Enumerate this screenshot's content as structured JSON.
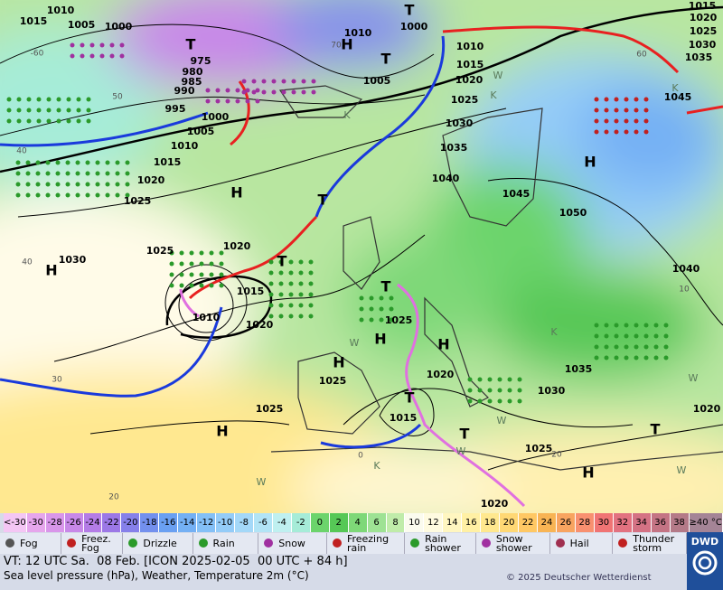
{
  "map": {
    "pressure_labels": [
      "1015",
      "1010",
      "1005",
      "1000",
      "975",
      "980",
      "985",
      "990",
      "995",
      "1000",
      "1005",
      "1010",
      "1015",
      "1020",
      "1025",
      "1025",
      "1030",
      "1020",
      "1015",
      "1010",
      "1020",
      "1025",
      "1025",
      "1010",
      "1000",
      "1005",
      "1010",
      "1015",
      "1020",
      "1025",
      "1030",
      "1035",
      "1040",
      "1045",
      "1050",
      "1045",
      "1040",
      "1035",
      "1030",
      "1020",
      "1025",
      "1020",
      "1015",
      "1025",
      "1020",
      "1015",
      "1020",
      "1025",
      "1030",
      "1035"
    ],
    "centers": [
      "T",
      "T",
      "T",
      "H",
      "H",
      "T",
      "H",
      "H",
      "T",
      "T",
      "H",
      "H",
      "H",
      "T",
      "H",
      "T",
      "T",
      "H"
    ],
    "isotherm_labels": [
      "-60",
      "50",
      "40",
      "40",
      "30",
      "20",
      "20",
      "0",
      "10",
      "60",
      "70"
    ],
    "airmass_labels": [
      "K",
      "W",
      "K",
      "K",
      "W",
      "W",
      "W",
      "K",
      "W",
      "W",
      "W",
      "K"
    ]
  },
  "legend": {
    "temperature_scale": [
      {
        "label": "<-30",
        "color": "#f4c6f4"
      },
      {
        "label": "-30",
        "color": "#e6a6ec"
      },
      {
        "label": "-28",
        "color": "#d996ea"
      },
      {
        "label": "-26",
        "color": "#c888e8"
      },
      {
        "label": "-24",
        "color": "#b47ce6"
      },
      {
        "label": "-22",
        "color": "#9c78e6"
      },
      {
        "label": "-20",
        "color": "#8680ea"
      },
      {
        "label": "-18",
        "color": "#7390ee"
      },
      {
        "label": "-16",
        "color": "#6aa0f2"
      },
      {
        "label": "-14",
        "color": "#74b0f4"
      },
      {
        "label": "-12",
        "color": "#84c0f6"
      },
      {
        "label": "-10",
        "color": "#94ccf8"
      },
      {
        "label": "-8",
        "color": "#a4d8f8"
      },
      {
        "label": "-6",
        "color": "#b2e4f6"
      },
      {
        "label": "-4",
        "color": "#bff0f0"
      },
      {
        "label": "-2",
        "color": "#a6ecd8"
      },
      {
        "label": "0",
        "color": "#6cd46c"
      },
      {
        "label": "2",
        "color": "#56c856"
      },
      {
        "label": "4",
        "color": "#7ed878"
      },
      {
        "label": "6",
        "color": "#9ee294"
      },
      {
        "label": "8",
        "color": "#c0ecaa"
      },
      {
        "label": "10",
        "color": "#fbfbee"
      },
      {
        "label": "12",
        "color": "#fffbe0"
      },
      {
        "label": "14",
        "color": "#fff6c0"
      },
      {
        "label": "16",
        "color": "#fff0a4"
      },
      {
        "label": "18",
        "color": "#ffe88e"
      },
      {
        "label": "20",
        "color": "#ffd874"
      },
      {
        "label": "22",
        "color": "#ffc864"
      },
      {
        "label": "24",
        "color": "#f8b454"
      },
      {
        "label": "26",
        "color": "#f8a460"
      },
      {
        "label": "28",
        "color": "#f89070"
      },
      {
        "label": "30",
        "color": "#f07474"
      },
      {
        "label": "32",
        "color": "#e27280"
      },
      {
        "label": "34",
        "color": "#d47284"
      },
      {
        "label": "36",
        "color": "#c47484"
      },
      {
        "label": "38",
        "color": "#b47a88"
      },
      {
        "label": "≥40 °C",
        "color": "#a48496"
      }
    ],
    "weather": [
      "Fog",
      "Freez.\nFog",
      "Drizzle",
      "Rain",
      "Snow",
      "Freezing\nrain",
      "Rain\nshower",
      "Snow\nshower",
      "Hail",
      "Thunder\nstorm"
    ]
  },
  "footer": {
    "valid_time": "VT: 12 UTC Sa.  08 Feb. [ICON 2025-02-05  00 UTC + 84 h]",
    "description": "Sea level pressure (hPa), Weather, Temperature 2m (°C)",
    "copyright": "© 2025 Deutscher Wetterdienst",
    "logo": "DWD"
  }
}
